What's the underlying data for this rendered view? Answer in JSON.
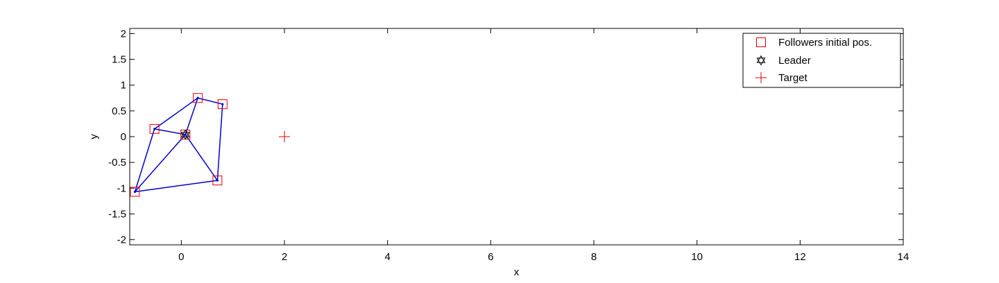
{
  "chart_data": {
    "type": "scatter",
    "title": "",
    "xlabel": "x",
    "ylabel": "y",
    "xlim": [
      -1,
      14
    ],
    "ylim": [
      -2.1,
      2.1
    ],
    "xticks": [
      0,
      2,
      4,
      6,
      8,
      10,
      12,
      14
    ],
    "yticks": [
      -2,
      -1.5,
      -1,
      -0.5,
      0,
      0.5,
      1,
      1.5,
      2
    ],
    "xtick_labels": [
      "0",
      "2",
      "4",
      "6",
      "8",
      "10",
      "12",
      "14"
    ],
    "ytick_labels": [
      "-2",
      "-1.5",
      "-1",
      "-0.5",
      "0",
      "0.5",
      "1",
      "1.5",
      "2"
    ],
    "grid": false,
    "legend_position": "top-right",
    "legend": [
      "Followers initial pos.",
      "Leader",
      "Target"
    ],
    "followers": [
      {
        "x": -0.9,
        "y": -1.07
      },
      {
        "x": -0.52,
        "y": 0.15
      },
      {
        "x": 0.32,
        "y": 0.75
      },
      {
        "x": 0.8,
        "y": 0.63
      },
      {
        "x": 0.7,
        "y": -0.85
      },
      {
        "x": 0.08,
        "y": 0.04
      }
    ],
    "leader": {
      "x": 0.08,
      "y": 0.04
    },
    "target": {
      "x": 2,
      "y": 0
    },
    "links": [
      [
        0,
        1
      ],
      [
        1,
        2
      ],
      [
        2,
        3
      ],
      [
        3,
        4
      ],
      [
        4,
        0
      ],
      [
        1,
        5
      ],
      [
        2,
        5
      ],
      [
        4,
        5
      ],
      [
        0,
        5
      ]
    ],
    "colors": {
      "follower": "#dd0000",
      "leader": "#000000",
      "target": "#dd0000",
      "links": "#0000cc",
      "axes": "#000000"
    }
  }
}
